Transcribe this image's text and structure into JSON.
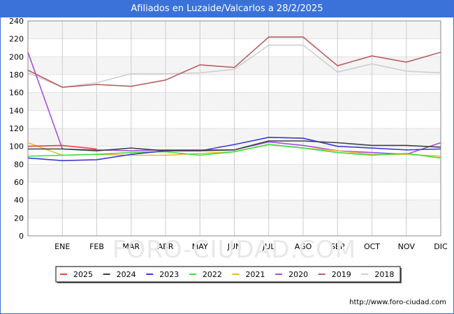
{
  "header": {
    "title": "Afiliados en Luzaide/Valcarlos a 28/2/2025"
  },
  "footer": {
    "url": "http://www.foro-ciudad.com"
  },
  "watermark": "FORO-CIUDAD.COM",
  "chart_data": {
    "type": "line",
    "title": "Afiliados en Luzaide/Valcarlos a 28/2/2025",
    "xlabel": "",
    "ylabel": "",
    "categories": [
      "",
      "ENE",
      "FEB",
      "MAR",
      "ABR",
      "MAY",
      "JUN",
      "JUL",
      "AGO",
      "SEP",
      "OCT",
      "NOV",
      "DIC"
    ],
    "ylim": [
      0,
      240
    ],
    "yticks": [
      0,
      20,
      40,
      60,
      80,
      100,
      120,
      140,
      160,
      180,
      200,
      220,
      240
    ],
    "grid": true,
    "legend_position": "bottom",
    "series": [
      {
        "name": "2025",
        "color": "#e8413c",
        "values": [
          100,
          101,
          97,
          null,
          null,
          null,
          null,
          null,
          null,
          null,
          null,
          null,
          null
        ]
      },
      {
        "name": "2024",
        "color": "#404040",
        "values": [
          97,
          97,
          95,
          98,
          95,
          95,
          96,
          106,
          106,
          104,
          101,
          101,
          99
        ]
      },
      {
        "name": "2023",
        "color": "#3a3ad8",
        "values": [
          87,
          84,
          85,
          91,
          95,
          95,
          102,
          110,
          109,
          100,
          98,
          96,
          97
        ]
      },
      {
        "name": "2022",
        "color": "#39e040",
        "values": [
          89,
          90,
          91,
          93,
          94,
          90,
          94,
          102,
          98,
          93,
          90,
          92,
          87
        ]
      },
      {
        "name": "2021",
        "color": "#f2b43a",
        "values": [
          104,
          90,
          91,
          90,
          90,
          92,
          94,
          102,
          98,
          95,
          91,
          91,
          89
        ]
      },
      {
        "name": "2020",
        "color": "#a64fe0",
        "values": [
          205,
          97,
          96,
          95,
          96,
          96,
          96,
          105,
          101,
          95,
          93,
          91,
          104
        ]
      },
      {
        "name": "2019",
        "color": "#b86062",
        "values": [
          185,
          166,
          169,
          167,
          174,
          191,
          188,
          222,
          222,
          190,
          201,
          194,
          205
        ]
      },
      {
        "name": "2018",
        "color": "#cfcfcf",
        "values": [
          182,
          166,
          171,
          181,
          181,
          182,
          186,
          213,
          213,
          183,
          192,
          184,
          182
        ]
      }
    ]
  }
}
